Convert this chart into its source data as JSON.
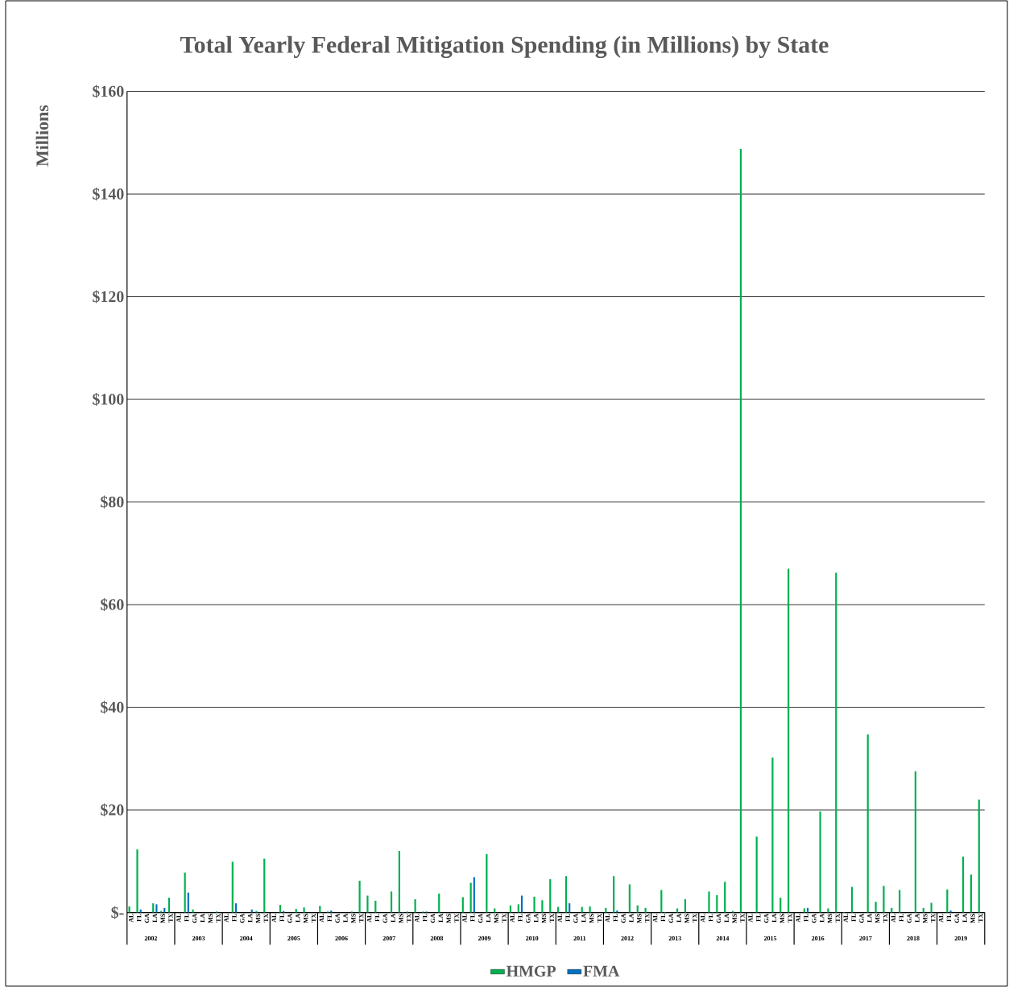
{
  "chart_data": {
    "type": "bar",
    "title": "Total Yearly Federal Mitigation Spending (in Millions) by State",
    "ylabel": "Millions",
    "categories": [
      "AL",
      "FL",
      "GA",
      "LA",
      "MS",
      "TX",
      "AL",
      "FL",
      "GA",
      "LA",
      "MS",
      "TX",
      "AL",
      "FL",
      "GA",
      "LA",
      "MS",
      "TX",
      "AL",
      "FL",
      "GA",
      "LA",
      "MS",
      "TX",
      "AL",
      "FL",
      "GA",
      "LA",
      "MS",
      "TX",
      "AL",
      "FL",
      "GA",
      "LA",
      "MS",
      "TX",
      "AL",
      "FL",
      "GA",
      "LA",
      "MS",
      "TX",
      "AL",
      "FL",
      "GA",
      "LA",
      "MS",
      "TX",
      "AL",
      "FL",
      "GA",
      "LA",
      "MS",
      "TX",
      "AL",
      "FL",
      "GA",
      "LA",
      "MS",
      "TX",
      "AL",
      "FL",
      "GA",
      "LA",
      "MS",
      "TX",
      "AL",
      "FL",
      "GA",
      "LA",
      "MS",
      "TX",
      "AL",
      "FL",
      "GA",
      "LA",
      "MS",
      "TX",
      "AL",
      "FL",
      "GA",
      "LA",
      "MS",
      "TX",
      "AL",
      "FL",
      "GA",
      "LA",
      "MS",
      "TX",
      "AL",
      "FL",
      "GA",
      "LA",
      "MS",
      "TX",
      "AL",
      "FL",
      "GA",
      "LA",
      "MS",
      "TX",
      "AL",
      "FL",
      "GA",
      "LA",
      "MS",
      "TX"
    ],
    "annotations": [
      "2002",
      "2003",
      "2004",
      "2005",
      "2006",
      "2007",
      "2008",
      "2009",
      "2010",
      "2011",
      "2012",
      "2013",
      "2014",
      "2015",
      "2016",
      "2017",
      "2018",
      "2019"
    ],
    "series": [
      {
        "name": "HMGP",
        "color": "#00b050",
        "values": [
          1.2,
          12.3,
          null,
          1.8,
          0.3,
          2.9,
          null,
          7.8,
          0.6,
          null,
          null,
          0.2,
          null,
          9.9,
          null,
          null,
          0.3,
          10.5,
          null,
          1.5,
          null,
          0.7,
          1.0,
          null,
          1.3,
          0.2,
          null,
          null,
          0.2,
          6.2,
          3.3,
          2.3,
          null,
          4.1,
          12.0,
          0.2,
          2.6,
          0.2,
          null,
          3.7,
          null,
          null,
          3.0,
          5.8,
          null,
          11.4,
          0.8,
          null,
          1.4,
          1.6,
          null,
          3.1,
          2.4,
          6.5,
          1.1,
          7.1,
          null,
          1.1,
          1.2,
          null,
          0.9,
          7.1,
          null,
          5.5,
          1.4,
          0.9,
          null,
          4.4,
          null,
          0.8,
          2.6,
          null,
          null,
          4.1,
          3.4,
          6.0,
          0.3,
          148.8,
          null,
          14.8,
          null,
          30.2,
          2.9,
          67.0,
          null,
          0.8,
          null,
          19.7,
          0.8,
          66.2,
          0.1,
          5.0,
          null,
          34.7,
          2.1,
          5.2,
          0.9,
          4.4,
          null,
          27.5,
          0.9,
          1.9,
          null,
          4.5,
          null,
          10.9,
          7.4,
          22.0
        ]
      },
      {
        "name": "FMA",
        "color": "#0070c0",
        "values": [
          null,
          0.6,
          null,
          1.6,
          0.9,
          null,
          null,
          3.9,
          null,
          null,
          null,
          null,
          null,
          1.8,
          null,
          0.6,
          null,
          null,
          null,
          0.3,
          null,
          null,
          null,
          null,
          null,
          0.4,
          null,
          null,
          null,
          null,
          null,
          null,
          null,
          null,
          0.1,
          null,
          null,
          0.2,
          null,
          null,
          null,
          null,
          null,
          6.9,
          null,
          null,
          null,
          null,
          null,
          3.3,
          null,
          null,
          null,
          null,
          null,
          1.8,
          null,
          null,
          null,
          null,
          null,
          0.4,
          null,
          null,
          null,
          null,
          null,
          0.1,
          null,
          null,
          null,
          null,
          null,
          0.1,
          null,
          null,
          null,
          null,
          null,
          null,
          null,
          null,
          null,
          null,
          null,
          0.9,
          null,
          null,
          null,
          null,
          null,
          null,
          null,
          null,
          null,
          null,
          null,
          null,
          null,
          null,
          null,
          null,
          null,
          0.4,
          null,
          null,
          null,
          null
        ]
      }
    ],
    "ylim": [
      0,
      160
    ],
    "yticks": [
      {
        "value": 0,
        "label": "$-"
      },
      {
        "value": 20,
        "label": "$20"
      },
      {
        "value": 40,
        "label": "$40"
      },
      {
        "value": 60,
        "label": "$60"
      },
      {
        "value": 80,
        "label": "$80"
      },
      {
        "value": 100,
        "label": "$100"
      },
      {
        "value": 120,
        "label": "$120"
      },
      {
        "value": 140,
        "label": "$140"
      },
      {
        "value": 160,
        "label": "$160"
      }
    ],
    "grid": "y",
    "legend": "bottom"
  }
}
